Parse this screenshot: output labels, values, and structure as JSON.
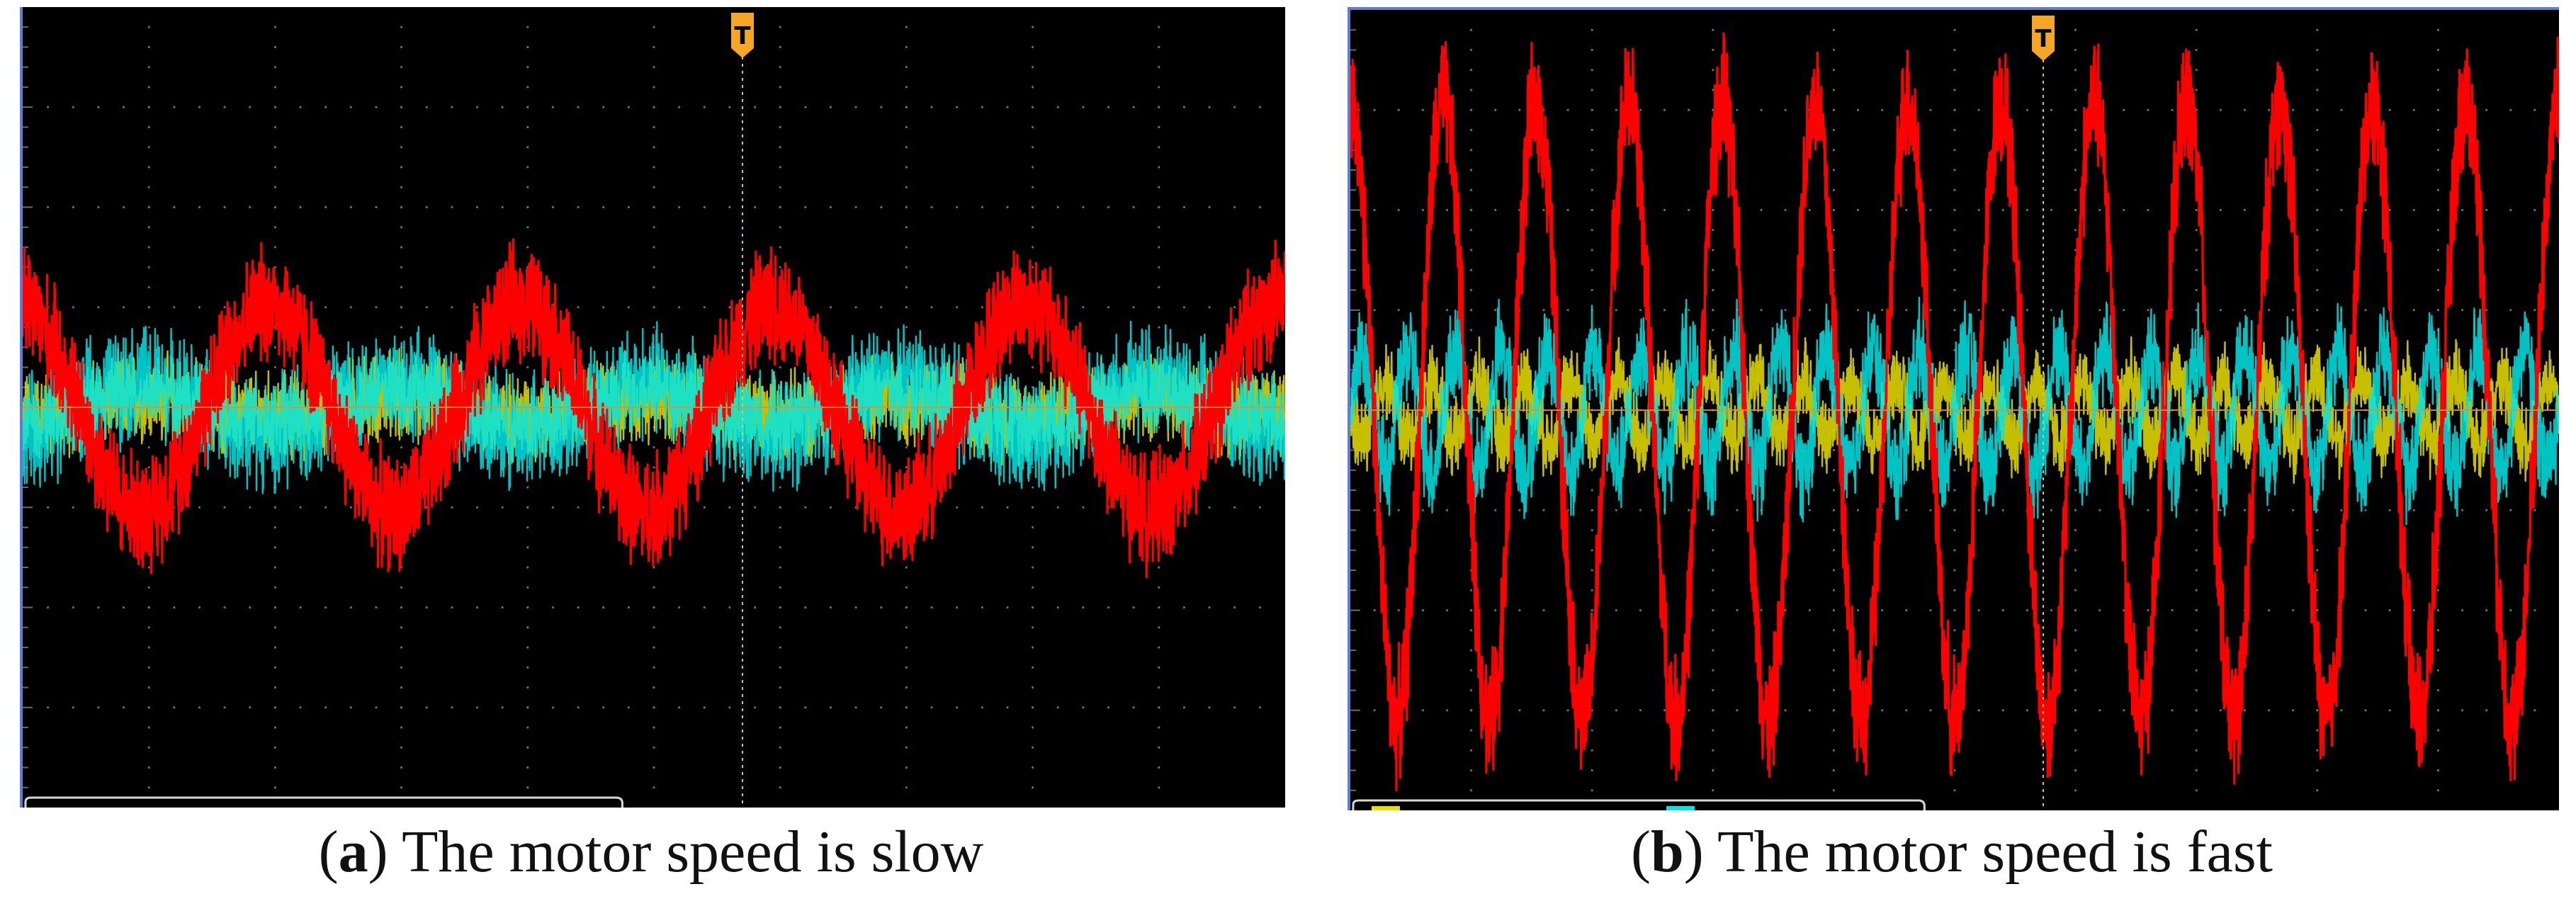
{
  "figure": {
    "captions": [
      {
        "letter": "a",
        "text": "The motor speed is slow"
      },
      {
        "letter": "b",
        "text": "The motor speed is fast"
      }
    ],
    "trigger_marker": "T"
  },
  "colors": {
    "background": "#000000",
    "grid": "#6b6b6b",
    "ch1_yellow": "#e8e000",
    "ch2_cyan": "#00e5e5",
    "ch3_red": "#ff0000",
    "trigger": "#f5a623",
    "frame": "#5b7fd6"
  },
  "chart_data": [
    {
      "type": "line",
      "panel": "a",
      "x_divisions": 10,
      "y_divisions": 8,
      "grid": true,
      "cycles_red": 5,
      "series": [
        {
          "color": "#ff0000",
          "amplitude_div": 1.05,
          "cycles": 5,
          "phase_deg": 100,
          "noise_div": 0.9
        },
        {
          "color": "#00e5e5",
          "amplitude_div": 0.25,
          "cycles": 5,
          "phase_deg": 280,
          "noise_div": 0.9
        },
        {
          "color": "#e8e000",
          "amplitude_div": 0.1,
          "cycles": 5,
          "phase_deg": 280,
          "noise_div": 0.7
        }
      ]
    },
    {
      "type": "line",
      "panel": "b",
      "x_divisions": 10,
      "y_divisions": 8,
      "grid": true,
      "cycles_red": 13,
      "series": [
        {
          "color": "#ff0000",
          "amplitude_div": 3.1,
          "cycles": 13,
          "phase_deg": 90,
          "noise_div": 1.0
        },
        {
          "color": "#00e5e5",
          "amplitude_div": 0.6,
          "cycles": 26,
          "phase_deg": 0,
          "noise_div": 0.8
        },
        {
          "color": "#e8e000",
          "amplitude_div": 0.3,
          "cycles": 26,
          "phase_deg": 180,
          "noise_div": 0.6
        }
      ]
    }
  ]
}
